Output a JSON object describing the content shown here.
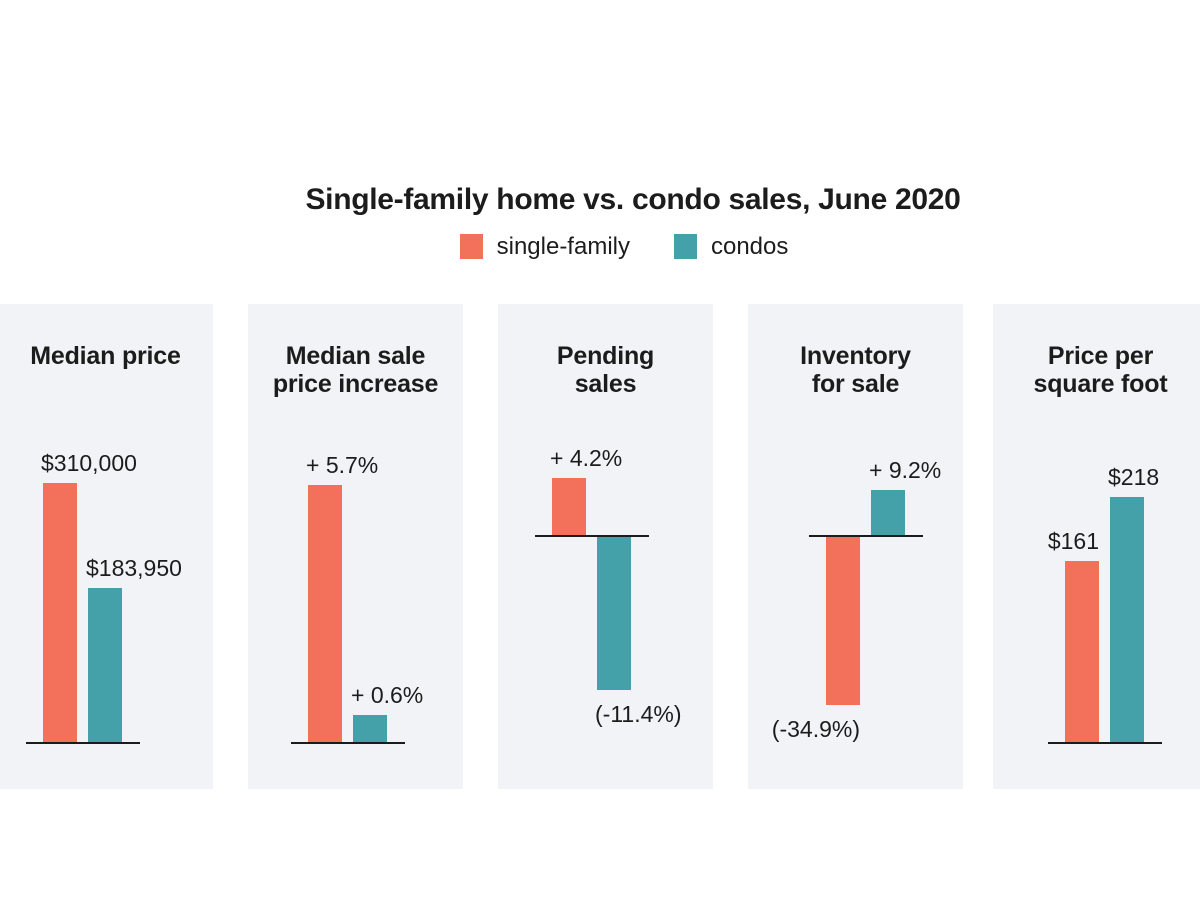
{
  "chart_data": {
    "type": "bar",
    "title": "Single-family home vs. condo sales, June 2020",
    "legend": [
      {
        "series": "single-family",
        "label": "single-family",
        "color": "#F3705A"
      },
      {
        "series": "condos",
        "label": "condos",
        "color": "#45A1A9"
      }
    ],
    "layout_hints": {
      "legend_position": "top",
      "grid": false,
      "axes": "baseline only, no ticks or axis labels",
      "scaling": "bars scaled per panel, negative values hang below baseline",
      "panel_background": "#F2F3F6",
      "baseline_color": "#1b1b1b",
      "text_color": "#1c1c1c"
    },
    "panels": [
      {
        "title": "Median price",
        "title_lines": [
          "Median price"
        ],
        "bars": [
          {
            "series": "single-family",
            "value": 310000,
            "label": "$310,000"
          },
          {
            "series": "condos",
            "value": 183950,
            "label": "$183,950"
          }
        ]
      },
      {
        "title": "Median sale price increase",
        "title_lines": [
          "Median sale",
          "price increase"
        ],
        "bars": [
          {
            "series": "single-family",
            "value": 5.7,
            "label": "+ 5.7%"
          },
          {
            "series": "condos",
            "value": 0.6,
            "label": "+ 0.6%"
          }
        ]
      },
      {
        "title": "Pending sales",
        "title_lines": [
          "Pending",
          "sales"
        ],
        "bars": [
          {
            "series": "single-family",
            "value": 4.2,
            "label": "+ 4.2%"
          },
          {
            "series": "condos",
            "value": -11.4,
            "label": "(-11.4%)"
          }
        ]
      },
      {
        "title": "Inventory for sale",
        "title_lines": [
          "Inventory",
          "for sale"
        ],
        "bars": [
          {
            "series": "single-family",
            "value": -34.9,
            "label": "(-34.9%)"
          },
          {
            "series": "condos",
            "value": 9.2,
            "label": "+ 9.2%"
          }
        ]
      },
      {
        "title": "Price per square foot",
        "title_lines": [
          "Price per",
          "square foot"
        ],
        "bars": [
          {
            "series": "single-family",
            "value": 161,
            "label": "$161"
          },
          {
            "series": "condos",
            "value": 218,
            "label": "$218"
          }
        ]
      }
    ]
  }
}
